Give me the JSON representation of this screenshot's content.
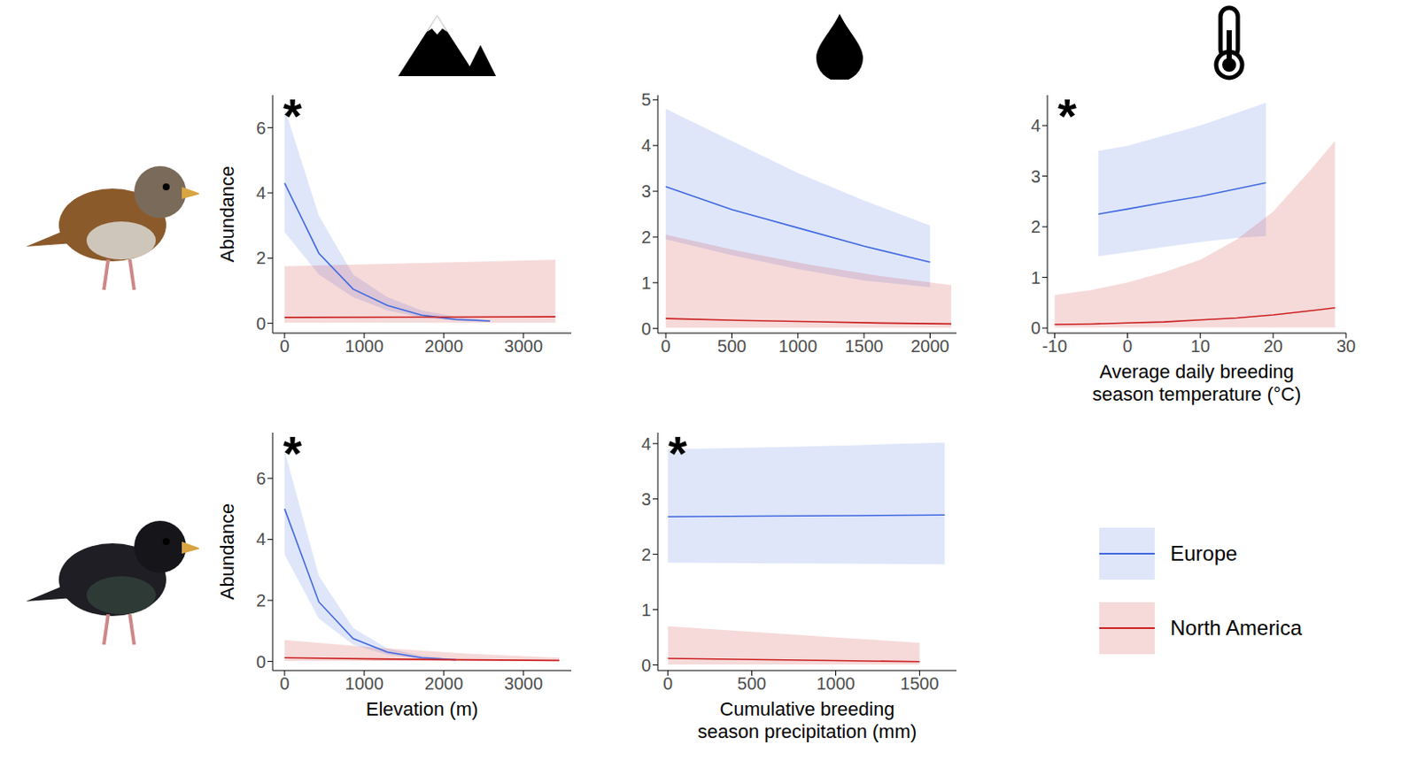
{
  "chart_data": [
    {
      "type": "line",
      "ylabel": "Abundance",
      "annotation": "*",
      "xlim": [
        -150,
        3600
      ],
      "xticks": [
        0,
        1000,
        2000,
        3000
      ],
      "ylim": [
        -0.3,
        7
      ],
      "yticks": [
        0,
        2,
        4,
        6
      ],
      "series": [
        {
          "name": "Europe",
          "color": "#4169e1",
          "x": [
            0,
            430,
            860,
            1290,
            1720,
            2150,
            2580
          ],
          "values": [
            4.3,
            2.15,
            1.05,
            0.55,
            0.25,
            0.12,
            0.07
          ],
          "lower": [
            2.8,
            1.5,
            0.8,
            0.4,
            0.18,
            0.08,
            0.04
          ],
          "upper": [
            6.6,
            3.3,
            1.5,
            0.8,
            0.4,
            0.2,
            0.1
          ]
        },
        {
          "name": "North America",
          "color": "#cc2222",
          "x": [
            0,
            1700,
            3400
          ],
          "values": [
            0.18,
            0.19,
            0.2
          ],
          "lower": [
            0.02,
            0.02,
            0.02
          ],
          "upper": [
            1.75,
            1.85,
            1.95
          ]
        }
      ]
    },
    {
      "type": "line",
      "xlim": [
        -60,
        2200
      ],
      "xticks": [
        0,
        500,
        1000,
        1500,
        2000
      ],
      "ylim": [
        -0.1,
        5.1
      ],
      "yticks": [
        0,
        1,
        2,
        3,
        4,
        5
      ],
      "series": [
        {
          "name": "Europe",
          "color": "#4169e1",
          "x": [
            0,
            500,
            1000,
            1500,
            2000
          ],
          "values": [
            3.1,
            2.6,
            2.2,
            1.8,
            1.45
          ],
          "lower": [
            1.95,
            1.6,
            1.3,
            1.05,
            0.9
          ],
          "upper": [
            4.8,
            4.1,
            3.4,
            2.8,
            2.25
          ]
        },
        {
          "name": "North America",
          "color": "#cc2222",
          "x": [
            0,
            540,
            1080,
            1620,
            2160
          ],
          "values": [
            0.22,
            0.18,
            0.15,
            0.12,
            0.1
          ],
          "lower": [
            0.02,
            0.02,
            0.02,
            0.02,
            0.02
          ],
          "upper": [
            2.05,
            1.7,
            1.4,
            1.15,
            0.95
          ]
        }
      ]
    },
    {
      "type": "line",
      "xlabel": "Average daily breeding season temperature (°C)",
      "annotation": "*",
      "xlim": [
        -11,
        30
      ],
      "xticks": [
        -10,
        0,
        10,
        20,
        30
      ],
      "ylim": [
        -0.1,
        4.6
      ],
      "yticks": [
        0,
        1,
        2,
        3,
        4
      ],
      "series": [
        {
          "name": "Europe",
          "color": "#4169e1",
          "x": [
            -4,
            0,
            5,
            10,
            15,
            19
          ],
          "values": [
            2.25,
            2.35,
            2.48,
            2.6,
            2.75,
            2.87
          ],
          "lower": [
            1.42,
            1.5,
            1.6,
            1.7,
            1.78,
            1.82
          ],
          "upper": [
            3.5,
            3.6,
            3.8,
            4.0,
            4.25,
            4.45
          ]
        },
        {
          "name": "North America",
          "color": "#cc2222",
          "x": [
            -10,
            -5,
            0,
            5,
            10,
            15,
            20,
            25,
            28.5
          ],
          "values": [
            0.07,
            0.08,
            0.1,
            0.12,
            0.16,
            0.2,
            0.26,
            0.34,
            0.4
          ],
          "lower": [
            0.01,
            0.01,
            0.01,
            0.01,
            0.01,
            0.01,
            0.01,
            0.01,
            0.01
          ],
          "upper": [
            0.65,
            0.75,
            0.9,
            1.1,
            1.35,
            1.75,
            2.3,
            3.1,
            3.7
          ]
        }
      ]
    },
    {
      "type": "line",
      "ylabel": "Abundance",
      "xlabel": "Elevation (m)",
      "annotation": "*",
      "xlim": [
        -150,
        3600
      ],
      "xticks": [
        0,
        1000,
        2000,
        3000
      ],
      "ylim": [
        -0.3,
        7.5
      ],
      "yticks": [
        0,
        2,
        4,
        6
      ],
      "series": [
        {
          "name": "Europe",
          "color": "#4169e1",
          "x": [
            0,
            430,
            860,
            1290,
            1720,
            2150
          ],
          "values": [
            5.0,
            1.95,
            0.75,
            0.3,
            0.12,
            0.05
          ],
          "lower": [
            3.5,
            1.4,
            0.55,
            0.22,
            0.08,
            0.03
          ],
          "upper": [
            6.9,
            2.8,
            1.1,
            0.42,
            0.18,
            0.08
          ]
        },
        {
          "name": "North America",
          "color": "#cc2222",
          "x": [
            0,
            1150,
            2300,
            3450
          ],
          "values": [
            0.12,
            0.08,
            0.05,
            0.03
          ],
          "lower": [
            0.01,
            0.01,
            0.01,
            0.01
          ],
          "upper": [
            0.7,
            0.45,
            0.25,
            0.12
          ]
        }
      ]
    },
    {
      "type": "line",
      "xlabel": "Cumulative breeding season precipitation (mm)",
      "annotation": "*",
      "legend": "right",
      "xlim": [
        -60,
        1720
      ],
      "xticks": [
        0,
        500,
        1000,
        1500
      ],
      "ylim": [
        -0.1,
        4.2
      ],
      "yticks": [
        0,
        1,
        2,
        3,
        4
      ],
      "series": [
        {
          "name": "Europe",
          "color": "#4169e1",
          "x": [
            0,
            550,
            1100,
            1650
          ],
          "values": [
            2.68,
            2.69,
            2.7,
            2.71
          ],
          "lower": [
            1.85,
            1.84,
            1.83,
            1.82
          ],
          "upper": [
            3.9,
            3.93,
            3.97,
            4.02
          ]
        },
        {
          "name": "North America",
          "color": "#cc2222",
          "x": [
            0,
            500,
            1000,
            1500
          ],
          "values": [
            0.12,
            0.1,
            0.08,
            0.06
          ],
          "lower": [
            0.01,
            0.01,
            0.01,
            0.01
          ],
          "upper": [
            0.7,
            0.6,
            0.5,
            0.4
          ]
        }
      ]
    }
  ]
}
